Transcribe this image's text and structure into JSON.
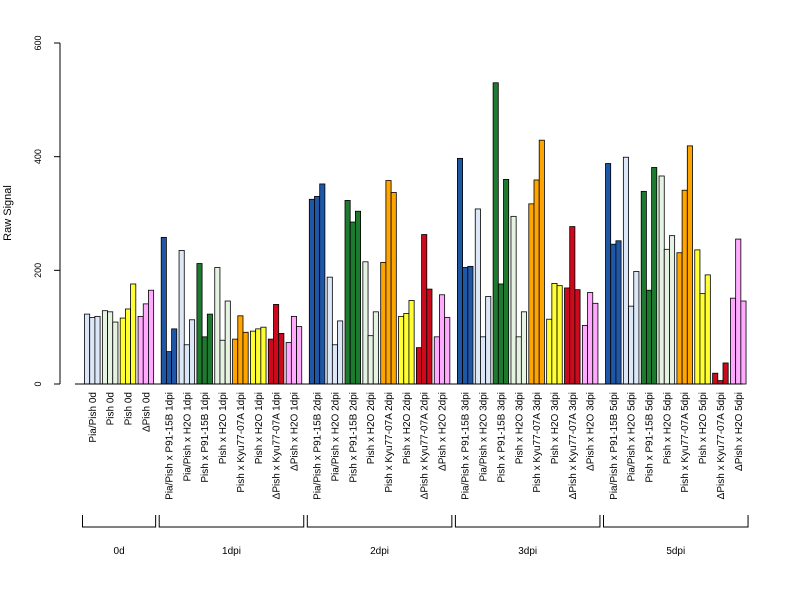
{
  "chart_data": {
    "type": "bar",
    "title": "",
    "xlabel": "",
    "ylabel": "Raw Signal",
    "ylim": [
      0,
      600
    ],
    "yticks": [
      0,
      200,
      400,
      600
    ],
    "grid": false,
    "legend": "none",
    "colors": {
      "Pia/Pish": "#dce8f7",
      "Pish": "#e6f3e3",
      "Pish (0d)": "#ffff33",
      "ΔPish": "#ffaaff",
      "Pia/Pish x P91-15B": "#1f57a6",
      "Pia/Pish x H2O": "#dce8f7",
      "Pish x P91-15B": "#1e7a2e",
      "Pish x H2O": "#e6f3e3",
      "Pish x Kyu77-07A": "#ffa500",
      "Pish x H2O (yellow)": "#ffff33",
      "ΔPish x Kyu77-07A": "#cc0a1e",
      "ΔPish x H2O": "#ffaaff"
    },
    "groups": [
      {
        "name": "0d",
        "categories": [
          {
            "label": "Pia/Pish 0d",
            "color": "#dce8f7",
            "values": [
              123,
              117,
              119
            ]
          },
          {
            "label": "Pish 0d",
            "color": "#e6f3e3",
            "values": [
              129,
              127,
              109
            ]
          },
          {
            "label": "Pish 0d",
            "color": "#ffff33",
            "values": [
              116,
              132,
              176
            ]
          },
          {
            "label": "ΔPish 0d",
            "color": "#ffaaff",
            "values": [
              119,
              141,
              165
            ]
          }
        ]
      },
      {
        "name": "1dpi",
        "categories": [
          {
            "label": "Pia/Pish x P91-15B 1dpi",
            "color": "#1f57a6",
            "values": [
              258,
              57,
              97
            ]
          },
          {
            "label": "Pia/Pish x H2O 1dpi",
            "color": "#dce8f7",
            "values": [
              235,
              69,
              113
            ]
          },
          {
            "label": "Pish x P91-15B 1dpi",
            "color": "#1e7a2e",
            "values": [
              212,
              83,
              123
            ]
          },
          {
            "label": "Pish x H2O 1dpi",
            "color": "#e6f3e3",
            "values": [
              205,
              77,
              146
            ]
          },
          {
            "label": "Pish x Kyu77-07A 1dpi",
            "color": "#ffa500",
            "values": [
              79,
              120,
              91
            ]
          },
          {
            "label": "Pish x H2O 1dpi",
            "color": "#ffff33",
            "values": [
              93,
              97,
              100
            ]
          },
          {
            "label": "ΔPish x Kyu77-07A 1dpi",
            "color": "#cc0a1e",
            "values": [
              79,
              140,
              89
            ]
          },
          {
            "label": "ΔPish x H2O 1dpi",
            "color": "#ffaaff",
            "values": [
              73,
              119,
              101
            ]
          }
        ]
      },
      {
        "name": "2dpi",
        "categories": [
          {
            "label": "Pia/Pish x P91-15B 2dpi",
            "color": "#1f57a6",
            "values": [
              325,
              330,
              352
            ]
          },
          {
            "label": "Pia/Pish x H2O 2dpi",
            "color": "#dce8f7",
            "values": [
              188,
              69,
              111
            ]
          },
          {
            "label": "Pish x P91-15B 2dpi",
            "color": "#1e7a2e",
            "values": [
              323,
              285,
              304
            ]
          },
          {
            "label": "Pish x H2O 2dpi",
            "color": "#e6f3e3",
            "values": [
              215,
              85,
              127
            ]
          },
          {
            "label": "Pish x Kyu77-07A 2dpi",
            "color": "#ffa500",
            "values": [
              214,
              358,
              337
            ]
          },
          {
            "label": "Pish x H2O 2dpi",
            "color": "#ffff33",
            "values": [
              119,
              124,
              147
            ]
          },
          {
            "label": "ΔPish x Kyu77-07A 2dpi",
            "color": "#cc0a1e",
            "values": [
              64,
              263,
              167
            ]
          },
          {
            "label": "ΔPish x H2O 2dpi",
            "color": "#ffaaff",
            "values": [
              83,
              157,
              117
            ]
          }
        ]
      },
      {
        "name": "3dpi",
        "categories": [
          {
            "label": "Pia/Pish x P91-15B 3dpi",
            "color": "#1f57a6",
            "values": [
              397,
              205,
              207
            ]
          },
          {
            "label": "Pia/Pish x H2O 3dpi",
            "color": "#dce8f7",
            "values": [
              308,
              83,
              154
            ]
          },
          {
            "label": "Pish x P91-15B 3dpi",
            "color": "#1e7a2e",
            "values": [
              530,
              176,
              360
            ]
          },
          {
            "label": "Pish x H2O 3dpi",
            "color": "#e6f3e3",
            "values": [
              295,
              83,
              127
            ]
          },
          {
            "label": "Pish x Kyu77-07A 3dpi",
            "color": "#ffa500",
            "values": [
              317,
              359,
              429
            ]
          },
          {
            "label": "Pish x H2O 3dpi",
            "color": "#ffff33",
            "values": [
              114,
              177,
              173
            ]
          },
          {
            "label": "ΔPish x Kyu77-07A 3dpi",
            "color": "#cc0a1e",
            "values": [
              169,
              277,
              166
            ]
          },
          {
            "label": "ΔPish x H2O 3dpi",
            "color": "#ffaaff",
            "values": [
              103,
              161,
              142
            ]
          }
        ]
      },
      {
        "name": "5dpi",
        "categories": [
          {
            "label": "Pia/Pish x P91-15B 5dpi",
            "color": "#1f57a6",
            "values": [
              388,
              246,
              252
            ]
          },
          {
            "label": "Pia/Pish x H2O 5dpi",
            "color": "#dce8f7",
            "values": [
              399,
              137,
              198
            ]
          },
          {
            "label": "Pish x P91-15B 5dpi",
            "color": "#1e7a2e",
            "values": [
              339,
              165,
              381
            ]
          },
          {
            "label": "Pish x H2O 5dpi",
            "color": "#e6f3e3",
            "values": [
              366,
              237,
              261
            ]
          },
          {
            "label": "Pish x Kyu77-07A 5dpi",
            "color": "#ffa500",
            "values": [
              231,
              341,
              419
            ]
          },
          {
            "label": "Pish x H2O 5dpi",
            "color": "#ffff33",
            "values": [
              236,
              159,
              192
            ]
          },
          {
            "label": "ΔPish x Kyu77-07A 5dpi",
            "color": "#cc0a1e",
            "values": [
              19,
              6,
              37
            ]
          },
          {
            "label": "ΔPish x H2O 5dpi",
            "color": "#ffaaff",
            "values": [
              151,
              255,
              146
            ]
          }
        ]
      }
    ]
  }
}
